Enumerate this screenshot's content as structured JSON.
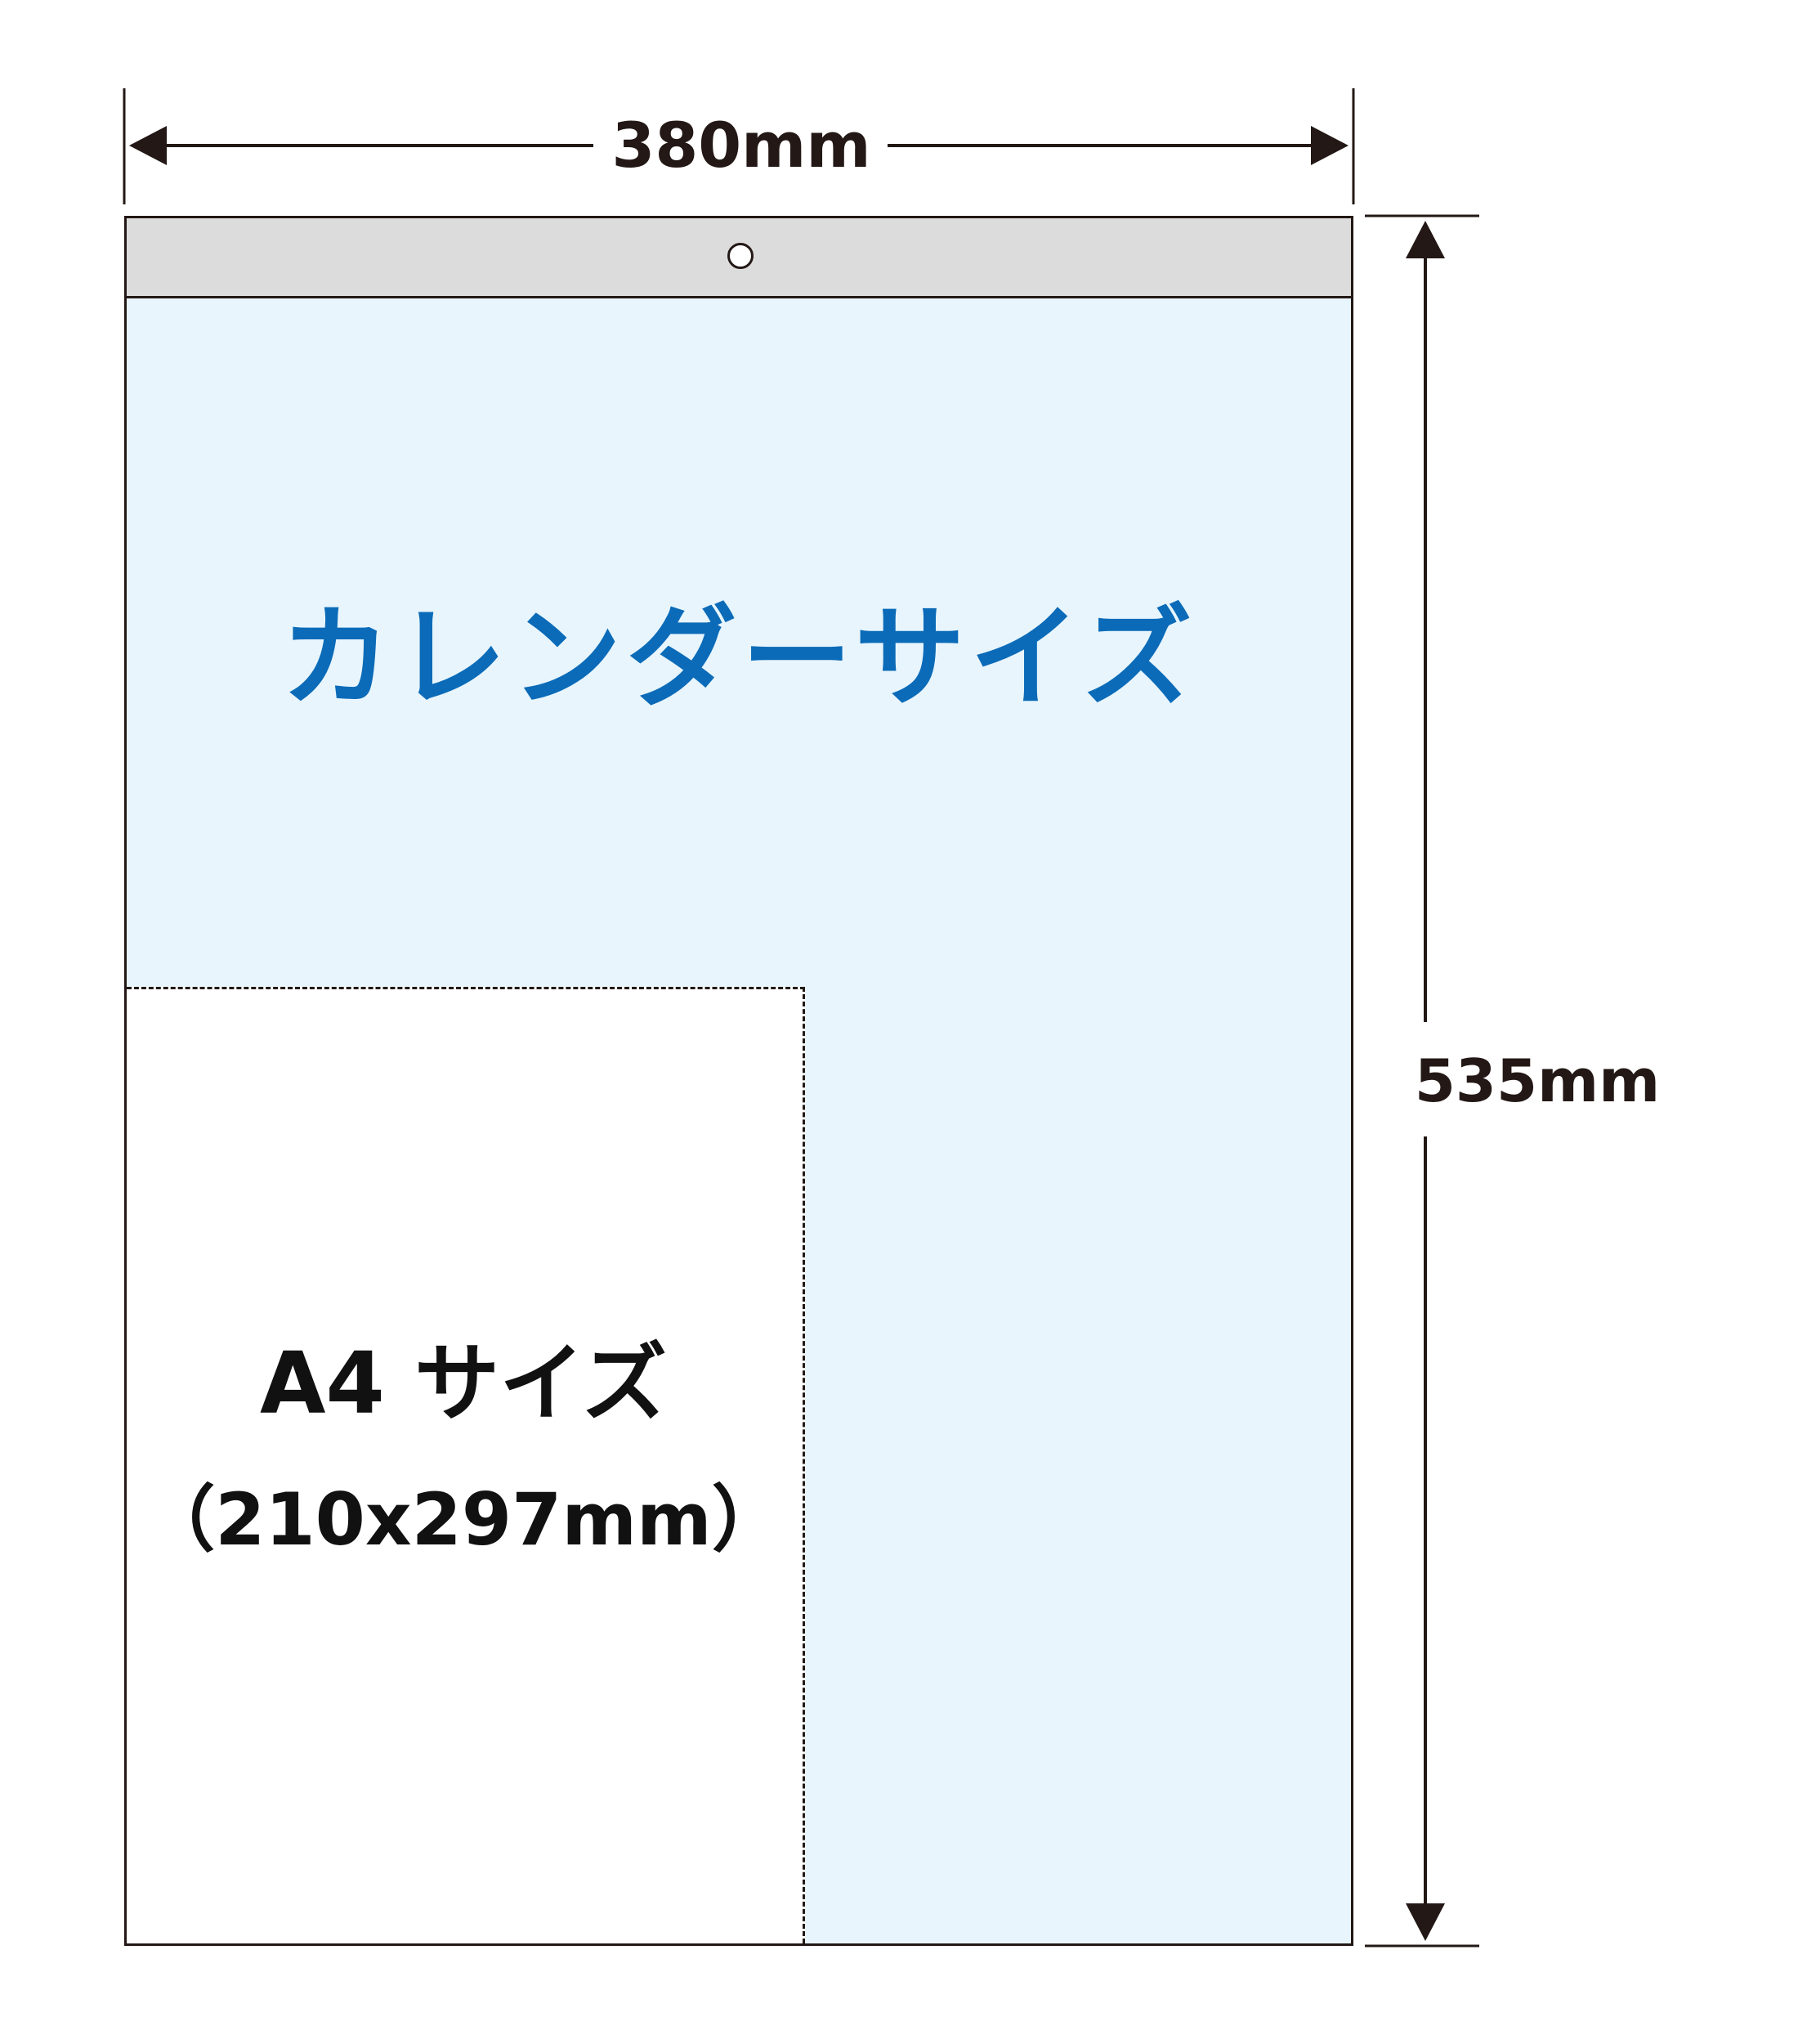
{
  "dimensions": {
    "width_label": "380mm",
    "height_label": "535mm"
  },
  "calendar": {
    "title": "カレンダーサイズ",
    "title_color": "#0b6bb8",
    "background_color": "#e8f5fd",
    "header_color": "#dcdcdc"
  },
  "a4": {
    "title": "A4 サイズ",
    "size": "（210x297mm）"
  }
}
